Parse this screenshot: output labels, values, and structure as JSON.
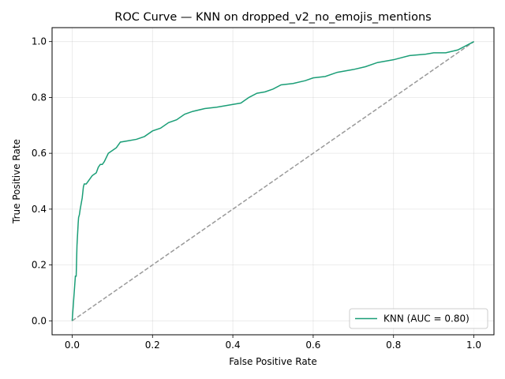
{
  "chart_data": {
    "type": "line",
    "title": "ROC Curve — KNN on dropped_v2_no_emojis_mentions",
    "xlabel": "False Positive Rate",
    "ylabel": "True Positive Rate",
    "xlim": [
      -0.05,
      1.05
    ],
    "ylim": [
      -0.05,
      1.05
    ],
    "xticks": [
      0.0,
      0.2,
      0.4,
      0.6,
      0.8,
      1.0
    ],
    "yticks": [
      0.0,
      0.2,
      0.4,
      0.6,
      0.8,
      1.0
    ],
    "xtick_labels": [
      "0.0",
      "0.2",
      "0.4",
      "0.6",
      "0.8",
      "1.0"
    ],
    "ytick_labels": [
      "0.0",
      "0.2",
      "0.4",
      "0.6",
      "0.8",
      "1.0"
    ],
    "grid": true,
    "legend_position": "lower-right",
    "series": [
      {
        "name": "KNN (AUC = 0.80)",
        "color": "#1b9e77",
        "style": "solid",
        "x": [
          0.0,
          0.008,
          0.01,
          0.012,
          0.015,
          0.016,
          0.018,
          0.02,
          0.025,
          0.028,
          0.03,
          0.035,
          0.04,
          0.045,
          0.05,
          0.06,
          0.065,
          0.07,
          0.075,
          0.08,
          0.09,
          0.1,
          0.11,
          0.12,
          0.14,
          0.16,
          0.18,
          0.2,
          0.22,
          0.24,
          0.26,
          0.28,
          0.3,
          0.33,
          0.36,
          0.38,
          0.4,
          0.42,
          0.44,
          0.46,
          0.48,
          0.5,
          0.52,
          0.55,
          0.58,
          0.6,
          0.63,
          0.66,
          0.7,
          0.73,
          0.76,
          0.8,
          0.84,
          0.88,
          0.9,
          0.93,
          0.96,
          1.0
        ],
        "y": [
          0.0,
          0.16,
          0.16,
          0.27,
          0.35,
          0.37,
          0.38,
          0.4,
          0.44,
          0.48,
          0.49,
          0.49,
          0.5,
          0.51,
          0.52,
          0.53,
          0.55,
          0.56,
          0.56,
          0.57,
          0.6,
          0.61,
          0.62,
          0.64,
          0.645,
          0.65,
          0.66,
          0.68,
          0.69,
          0.71,
          0.72,
          0.74,
          0.75,
          0.76,
          0.765,
          0.77,
          0.775,
          0.78,
          0.8,
          0.815,
          0.82,
          0.83,
          0.845,
          0.85,
          0.86,
          0.87,
          0.875,
          0.89,
          0.9,
          0.91,
          0.925,
          0.935,
          0.95,
          0.955,
          0.96,
          0.96,
          0.97,
          1.0
        ]
      },
      {
        "name": "",
        "color": "#999999",
        "style": "dashed",
        "x": [
          0.0,
          1.0
        ],
        "y": [
          0.0,
          1.0
        ]
      }
    ]
  }
}
